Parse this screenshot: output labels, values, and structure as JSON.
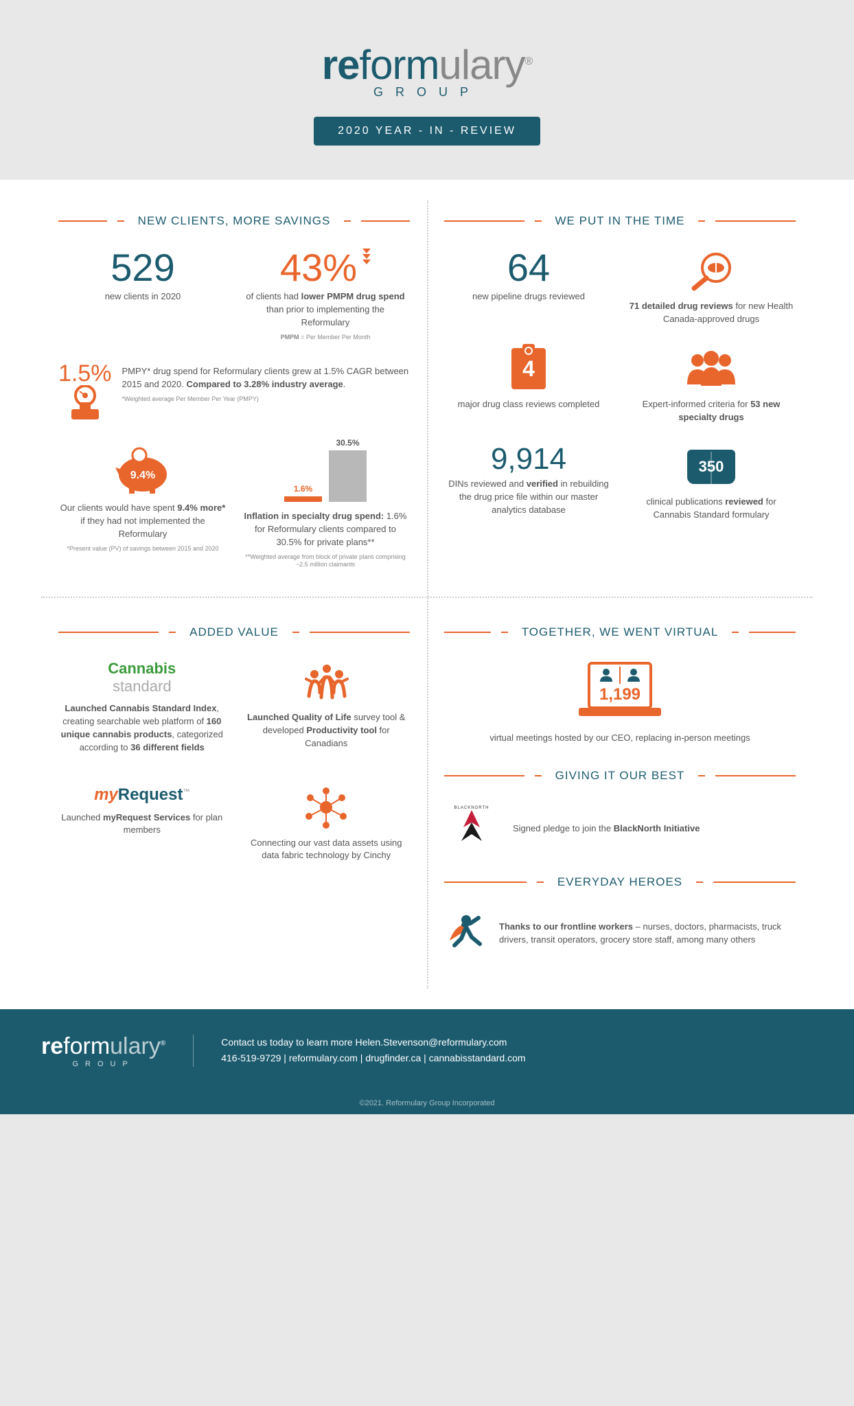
{
  "colors": {
    "teal": "#1c5b6e",
    "orange": "#e8652c",
    "lightgrey": "#e8e8e8",
    "barGrey": "#b8b8b8"
  },
  "header": {
    "logoPre": "re",
    "logoMid": "form",
    "logoPost": "ulary",
    "logoReg": "®",
    "logoSub": "GROUP",
    "badge": "2020 YEAR - IN - REVIEW"
  },
  "q1": {
    "title": "NEW CLIENTS, MORE SAVINGS",
    "stat1_num": "529",
    "stat1_label": "new clients in 2020",
    "stat2_num": "43%",
    "stat2_label": "of clients had <b>lower PMPM drug spend</b> than prior to implementing the Reformulary",
    "stat2_note": "<b>PMPM</b> = Per Member Per Month",
    "stat3_num": "1.5%",
    "stat3_label": "PMPY* drug spend for Reformulary clients grew at 1.5% CAGR between 2015 and 2020. <b>Compared to 3.28% industry average</b>.",
    "stat3_note": "*Weighted average Per Member Per Year (PMPY)",
    "stat4_num": "9.4%",
    "stat4_label": "Our clients would have spent <b>9.4% more*</b> if they had not implemented the Reformulary",
    "stat4_note": "*Present value (PV) of savings between 2015 and 2020",
    "bar1": "1.6%",
    "bar2": "30.5%",
    "bar_label": "<b>Inflation in specialty drug spend:</b> 1.6% for Reformulary clients compared to 30.5% for private plans**",
    "bar_note": "**Weighted average from block of private plans comprising ~2.5 million claimants"
  },
  "q2": {
    "title": "WE PUT IN THE TIME",
    "s1_num": "64",
    "s1_label": "new pipeline drugs reviewed",
    "s2_label": "<b>71 detailed drug reviews</b> for new Health Canada-approved drugs",
    "s3_num": "4",
    "s3_label": "major drug class reviews completed",
    "s4_label": "Expert-informed criteria for <b>53 new specialty drugs</b>",
    "s5_num": "9,914",
    "s5_label": "DINs reviewed and <b>verified</b> in rebuilding the drug price file within our master analytics database",
    "s6_num": "350",
    "s6_label": "clinical publications <b>reviewed</b> for Cannabis Standard formulary"
  },
  "q3": {
    "title": "ADDED VALUE",
    "cannabis_logo1": "Cannabis",
    "cannabis_logo2": "standard",
    "s1": "<b>Launched Cannabis Standard Index</b>, creating searchable web platform of <b>160 unique cannabis products</b>, categorized according to <b>36 different fields</b>",
    "s2": "<b>Launched Quality of Life</b> survey tool & developed <b>Productivity tool</b> for Canadians",
    "myreq_logo1": "my",
    "myreq_logo2": "Request",
    "myreq_tm": "™",
    "s3": "Launched <b>myRequest Services</b> for plan members",
    "s4": "Connecting our vast data assets using data fabric technology by Cinchy"
  },
  "q4": {
    "title1": "TOGETHER, WE WENT VIRTUAL",
    "virtual_num": "1,199",
    "virtual_label": "virtual meetings hosted by our CEO, replacing in-person meetings",
    "title2": "GIVING IT OUR BEST",
    "pledge": "Signed pledge to join the <b>BlackNorth Initiative</b>",
    "title3": "EVERYDAY HEROES",
    "heroes": "<b>Thanks to our frontline workers</b> – nurses, doctors, pharmacists, truck drivers, transit operators, grocery store staff, among many others"
  },
  "footer": {
    "logoPre": "re",
    "logoMid": "form",
    "logoPost": "ulary",
    "logoReg": "®",
    "logoSub": "GROUP",
    "line1": "Contact us today to learn more Helen.Stevenson@reformulary.com",
    "line2": "416-519-9729 | reformulary.com | drugfinder.ca | cannabisstandard.com",
    "copyright": "©2021. Reformulary Group Incorporated"
  }
}
